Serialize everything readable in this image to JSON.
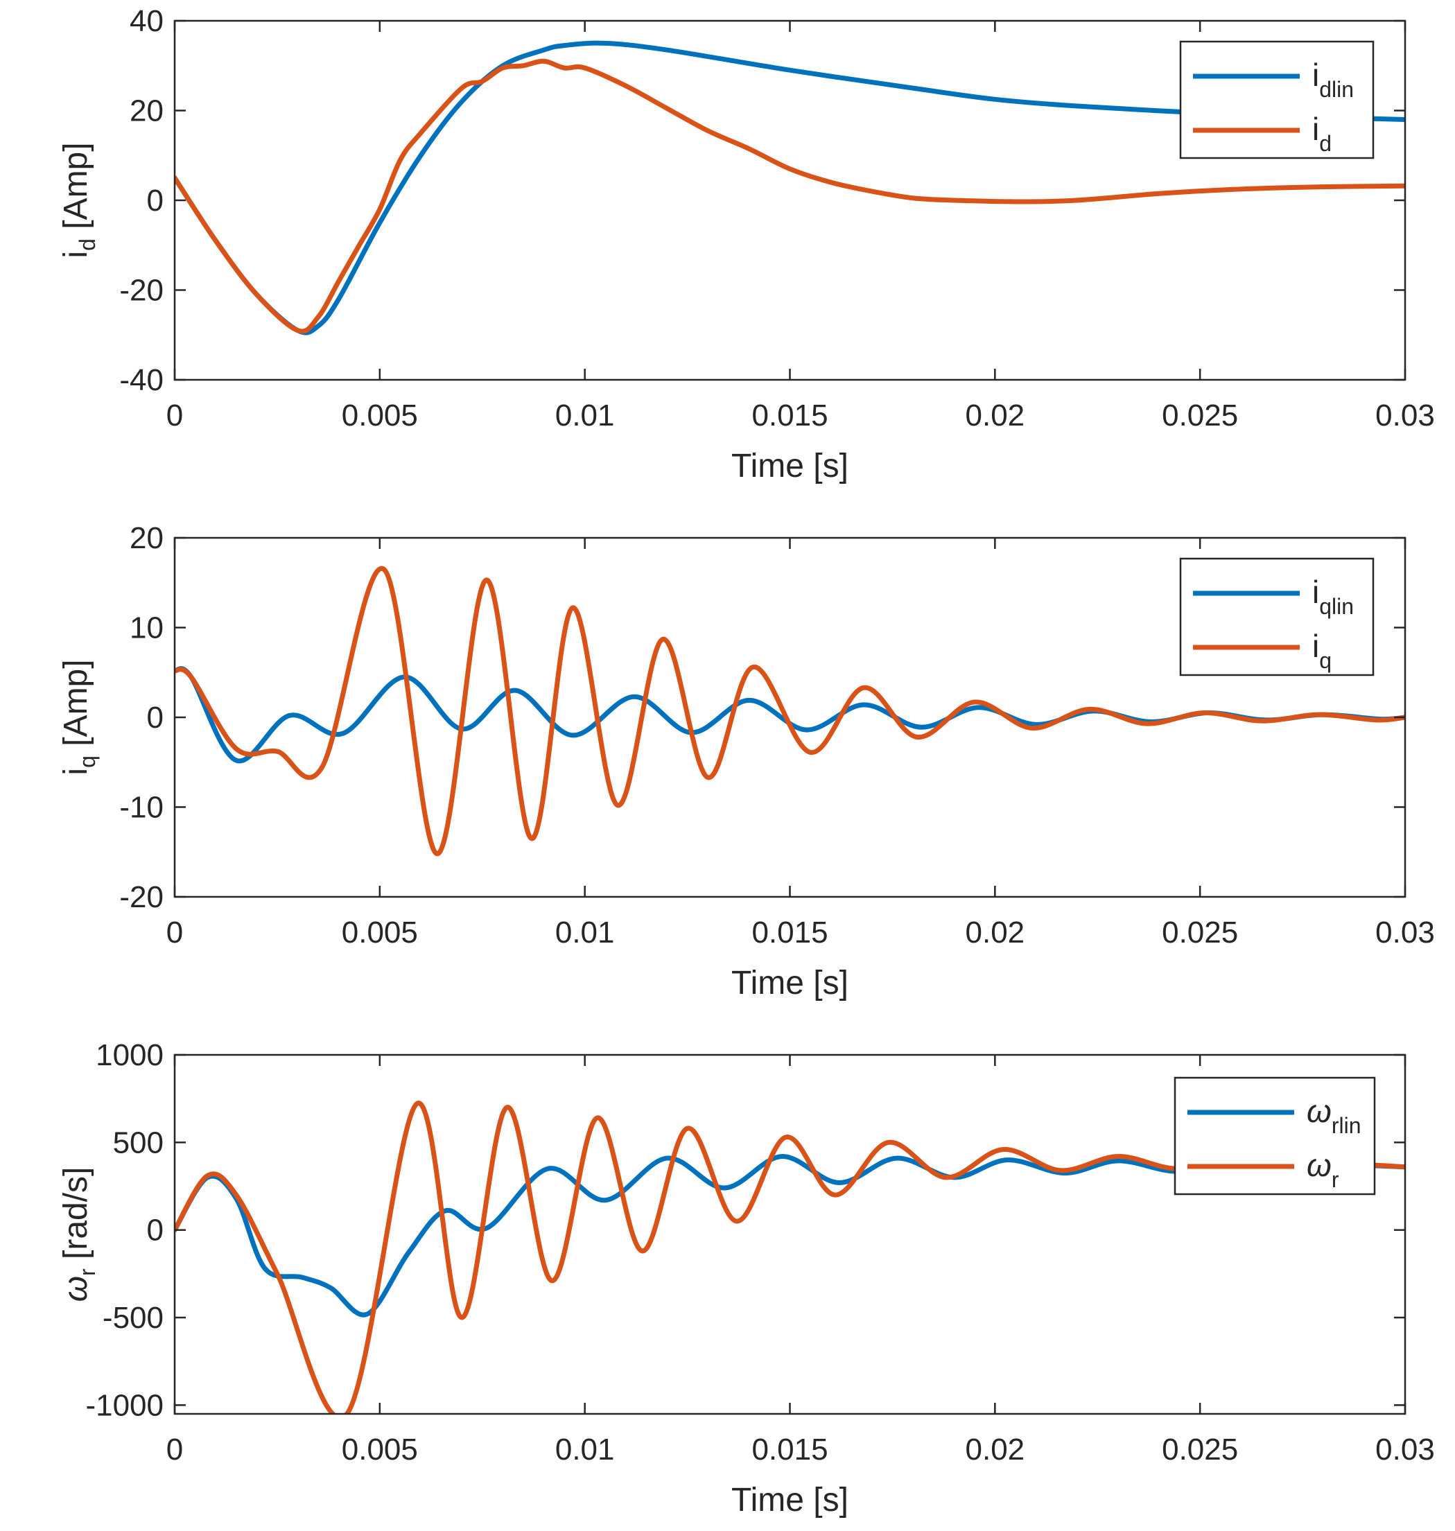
{
  "chart_data": [
    {
      "type": "line",
      "xlabel": "Time [s]",
      "ylabel": {
        "main": "i",
        "sub": "d",
        "unit": " [Amp]"
      },
      "xlim": [
        0,
        0.03
      ],
      "ylim": [
        -40,
        40
      ],
      "xticks": [
        0,
        0.005,
        0.01,
        0.015,
        0.02,
        0.025,
        0.03
      ],
      "xtick_labels": [
        "0",
        "0.005",
        "0.01",
        "0.015",
        "0.02",
        "0.025",
        "0.03"
      ],
      "yticks": [
        -40,
        -20,
        0,
        20,
        40
      ],
      "ytick_labels": [
        "-40",
        "-20",
        "0",
        "20",
        "40"
      ],
      "legend_position": "top-right",
      "series": [
        {
          "name": "idlin",
          "label": {
            "main": "i",
            "sub": "dlin"
          },
          "color": "#0072BD",
          "x": [
            0,
            0.001,
            0.002,
            0.003,
            0.0035,
            0.004,
            0.005,
            0.006,
            0.007,
            0.008,
            0.009,
            0.0095,
            0.0105,
            0.012,
            0.015,
            0.018,
            0.02,
            0.022,
            0.025,
            0.028,
            0.03
          ],
          "y": [
            5,
            -9,
            -21,
            -29,
            -28,
            -22,
            -5,
            10,
            22,
            30,
            33.5,
            34.5,
            35,
            33.5,
            29,
            25,
            22.5,
            21,
            19.5,
            18.5,
            18
          ]
        },
        {
          "name": "id",
          "label": {
            "main": "i",
            "sub": "d"
          },
          "color": "#D95319",
          "x": [
            0,
            0.001,
            0.002,
            0.003,
            0.0035,
            0.004,
            0.0045,
            0.005,
            0.0055,
            0.006,
            0.007,
            0.0075,
            0.008,
            0.0085,
            0.009,
            0.0095,
            0.01,
            0.011,
            0.012,
            0.013,
            0.014,
            0.015,
            0.016,
            0.017,
            0.018,
            0.019,
            0.0205,
            0.022,
            0.024,
            0.026,
            0.028,
            0.03
          ],
          "y": [
            5,
            -9,
            -21,
            -29,
            -26,
            -18,
            -10,
            -2,
            9,
            15,
            25,
            26.5,
            29.5,
            30,
            31,
            29.5,
            29.5,
            25.5,
            20.5,
            15.5,
            11.5,
            7,
            4,
            2,
            0.5,
            0,
            -0.3,
            0,
            1.5,
            2.5,
            3,
            3.2
          ]
        }
      ]
    },
    {
      "type": "line",
      "xlabel": "Time [s]",
      "ylabel": {
        "main": "i",
        "sub": "q",
        "unit": " [Amp]"
      },
      "xlim": [
        0,
        0.03
      ],
      "ylim": [
        -20,
        20
      ],
      "xticks": [
        0,
        0.005,
        0.01,
        0.015,
        0.02,
        0.025,
        0.03
      ],
      "xtick_labels": [
        "0",
        "0.005",
        "0.01",
        "0.015",
        "0.02",
        "0.025",
        "0.03"
      ],
      "yticks": [
        -20,
        -10,
        0,
        10,
        20
      ],
      "ytick_labels": [
        "-20",
        "-10",
        "0",
        "10",
        "20"
      ],
      "legend_position": "top-right",
      "series": [
        {
          "name": "iqlin",
          "label": {
            "main": "i",
            "sub": "qlin"
          },
          "color": "#0072BD",
          "x": [
            0,
            0.0004,
            0.0015,
            0.0028,
            0.0041,
            0.0056,
            0.007,
            0.0083,
            0.0097,
            0.0112,
            0.0126,
            0.014,
            0.0154,
            0.0168,
            0.0182,
            0.0196,
            0.021,
            0.0224,
            0.0238,
            0.0252,
            0.0266,
            0.028,
            0.0294,
            0.03
          ],
          "y": [
            5.2,
            4.5,
            -4.8,
            0.2,
            -1.8,
            4.5,
            -1.3,
            3,
            -2,
            2.3,
            -1.7,
            1.9,
            -1.4,
            1.4,
            -1.1,
            1.1,
            -0.8,
            0.7,
            -0.5,
            0.5,
            -0.3,
            0.3,
            -0.2,
            0
          ]
        },
        {
          "name": "iq",
          "label": {
            "main": "i",
            "sub": "q"
          },
          "color": "#D95319",
          "x": [
            0,
            0.0004,
            0.0015,
            0.0025,
            0.0036,
            0.0051,
            0.0064,
            0.0076,
            0.0087,
            0.0097,
            0.0108,
            0.0119,
            0.013,
            0.0141,
            0.0155,
            0.0168,
            0.0181,
            0.0195,
            0.0209,
            0.0223,
            0.0237,
            0.0251,
            0.0265,
            0.0279,
            0.0293,
            0.03
          ],
          "y": [
            5.2,
            4.5,
            -3.5,
            -3.8,
            -5.5,
            16.5,
            -15.2,
            15.3,
            -13.5,
            12.2,
            -9.8,
            8.7,
            -6.7,
            5.6,
            -3.9,
            3.3,
            -2.2,
            1.7,
            -1.2,
            0.9,
            -0.7,
            0.5,
            -0.4,
            0.3,
            -0.3,
            0
          ]
        }
      ]
    },
    {
      "type": "line",
      "xlabel": "Time [s]",
      "ylabel": {
        "main": "ω",
        "sub": "r",
        "unit": " [rad/s]"
      },
      "xlim": [
        0,
        0.03
      ],
      "ylim": [
        -1050,
        1000
      ],
      "xticks": [
        0,
        0.005,
        0.01,
        0.015,
        0.02,
        0.025,
        0.03
      ],
      "xtick_labels": [
        "0",
        "0.005",
        "0.01",
        "0.015",
        "0.02",
        "0.025",
        "0.03"
      ],
      "yticks": [
        -1000,
        -500,
        0,
        500,
        1000
      ],
      "ytick_labels": [
        "-1000",
        "-500",
        "0",
        "500",
        "1000"
      ],
      "legend_position": "top-right",
      "series": [
        {
          "name": "wrlin",
          "label": {
            "main": "ω",
            "sub": "rlin"
          },
          "color": "#0072BD",
          "x": [
            0,
            0.0008,
            0.0015,
            0.0022,
            0.0031,
            0.0038,
            0.0047,
            0.0057,
            0.0066,
            0.0076,
            0.0091,
            0.0105,
            0.012,
            0.0134,
            0.0148,
            0.0162,
            0.0176,
            0.019,
            0.0203,
            0.0217,
            0.023,
            0.0244,
            0.0257,
            0.0271,
            0.0285,
            0.03
          ],
          "y": [
            0,
            300,
            180,
            -220,
            -270,
            -330,
            -480,
            -130,
            110,
            10,
            350,
            170,
            410,
            240,
            420,
            270,
            410,
            300,
            400,
            325,
            395,
            335,
            385,
            350,
            370,
            360
          ]
        },
        {
          "name": "wr",
          "label": {
            "main": "ω",
            "sub": "r"
          },
          "color": "#D95319",
          "x": [
            0,
            0.0008,
            0.0015,
            0.0025,
            0.0042,
            0.0059,
            0.007,
            0.0081,
            0.0092,
            0.0103,
            0.0114,
            0.0125,
            0.0137,
            0.0149,
            0.0161,
            0.0174,
            0.0188,
            0.0202,
            0.0216,
            0.023,
            0.0244,
            0.0258,
            0.0272,
            0.0286,
            0.03
          ],
          "y": [
            0,
            310,
            200,
            -250,
            -1050,
            720,
            -500,
            700,
            -290,
            640,
            -120,
            580,
            50,
            530,
            200,
            500,
            300,
            460,
            340,
            420,
            350,
            390,
            355,
            375,
            360
          ]
        }
      ]
    }
  ]
}
